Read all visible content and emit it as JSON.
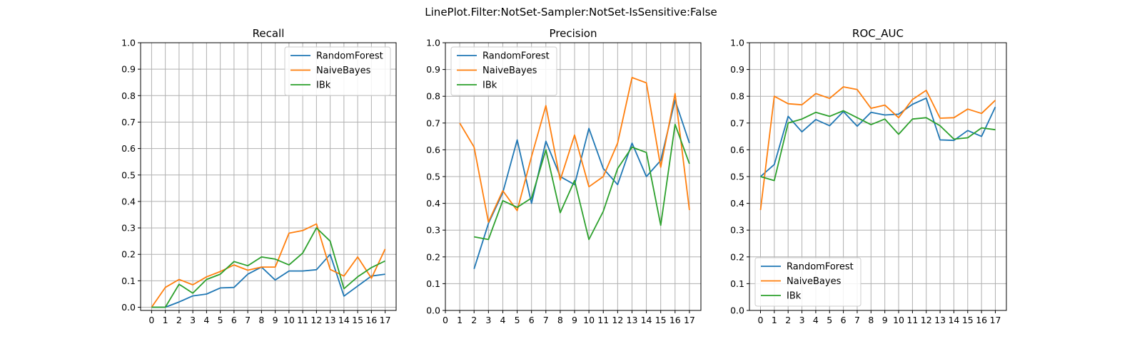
{
  "figure": {
    "title": "LinePlot.Filter:NotSet-Sampler:NotSet-IsSensitive:False"
  },
  "colors": {
    "RandomForest": "#1f77b4",
    "NaiveBayes": "#ff7f0e",
    "IBk": "#2ca02c"
  },
  "chart_data": [
    {
      "type": "line",
      "title": "Recall",
      "x": [
        0,
        1,
        2,
        3,
        4,
        5,
        6,
        7,
        8,
        9,
        10,
        11,
        12,
        13,
        14,
        15,
        16,
        17
      ],
      "xlim": [
        -0.8,
        17.8
      ],
      "ylim": [
        -0.012,
        1.0
      ],
      "yticks": [
        0.0,
        0.1,
        0.2,
        0.3,
        0.4,
        0.5,
        0.6,
        0.7,
        0.8,
        0.9,
        1.0
      ],
      "ytick_labels": [
        "0.0",
        "0.1",
        "0.2",
        "0.3",
        "0.4",
        "0.5",
        "0.6",
        "0.7",
        "0.8",
        "0.9",
        "1.0"
      ],
      "grid": true,
      "legend": "top-right",
      "series": [
        {
          "name": "RandomForest",
          "values": [
            0.0,
            0.0,
            0.02,
            0.043,
            0.05,
            0.073,
            0.075,
            0.125,
            0.152,
            0.103,
            0.137,
            0.137,
            0.142,
            0.2,
            0.042,
            0.08,
            0.118,
            0.125
          ]
        },
        {
          "name": "NaiveBayes",
          "values": [
            0.0,
            0.075,
            0.105,
            0.085,
            0.115,
            0.135,
            0.16,
            0.14,
            0.152,
            0.152,
            0.28,
            0.29,
            0.315,
            0.143,
            0.118,
            0.19,
            0.11,
            0.22
          ]
        },
        {
          "name": "IBk",
          "values": [
            0.0,
            0.0,
            0.087,
            0.053,
            0.105,
            0.125,
            0.173,
            0.157,
            0.19,
            0.182,
            0.16,
            0.205,
            0.3,
            0.25,
            0.07,
            0.115,
            0.15,
            0.175
          ]
        }
      ]
    },
    {
      "type": "line",
      "title": "Precision",
      "x": [
        0,
        1,
        2,
        3,
        4,
        5,
        6,
        7,
        8,
        9,
        10,
        11,
        12,
        13,
        14,
        15,
        16,
        17
      ],
      "xlim": [
        0,
        17.8
      ],
      "ylim": [
        0.0,
        1.0
      ],
      "yticks": [
        0.0,
        0.1,
        0.2,
        0.3,
        0.4,
        0.5,
        0.6,
        0.7,
        0.8,
        0.9,
        1.0
      ],
      "ytick_labels": [
        "0.0",
        "0.1",
        "0.2",
        "0.3",
        "0.4",
        "0.5",
        "0.6",
        "0.7",
        "0.8",
        "0.9",
        "1.0"
      ],
      "grid": true,
      "legend": "top-left",
      "series": [
        {
          "name": "RandomForest",
          "values": [
            null,
            null,
            0.155,
            0.325,
            0.44,
            0.637,
            0.4,
            0.632,
            0.5,
            0.47,
            0.68,
            0.53,
            0.47,
            0.625,
            0.5,
            0.56,
            0.785,
            0.625
          ]
        },
        {
          "name": "NaiveBayes",
          "values": [
            null,
            0.7,
            0.61,
            0.33,
            0.447,
            0.373,
            0.575,
            0.765,
            0.487,
            0.655,
            0.462,
            0.5,
            0.625,
            0.87,
            0.85,
            0.535,
            0.81,
            0.375
          ]
        },
        {
          "name": "IBk",
          "values": [
            null,
            null,
            0.275,
            0.265,
            0.41,
            0.385,
            0.42,
            0.6,
            0.365,
            0.485,
            0.265,
            0.37,
            0.53,
            0.61,
            0.59,
            0.318,
            0.695,
            0.548
          ]
        }
      ]
    },
    {
      "type": "line",
      "title": "ROC_AUC",
      "x": [
        0,
        1,
        2,
        3,
        4,
        5,
        6,
        7,
        8,
        9,
        10,
        11,
        12,
        13,
        14,
        15,
        16,
        17
      ],
      "xlim": [
        -0.8,
        17.8
      ],
      "ylim": [
        0.0,
        1.0
      ],
      "yticks": [
        0.0,
        0.1,
        0.2,
        0.3,
        0.4,
        0.5,
        0.6,
        0.7,
        0.8,
        0.9,
        1.0
      ],
      "ytick_labels": [
        "0.0",
        "0.1",
        "0.2",
        "0.3",
        "0.4",
        "0.5",
        "0.6",
        "0.7",
        "0.8",
        "0.9",
        "1.0"
      ],
      "grid": true,
      "legend": "bottom-left",
      "series": [
        {
          "name": "RandomForest",
          "values": [
            0.5,
            0.545,
            0.725,
            0.667,
            0.713,
            0.69,
            0.743,
            0.688,
            0.74,
            0.73,
            0.733,
            0.77,
            0.793,
            0.637,
            0.635,
            0.672,
            0.65,
            0.76
          ]
        },
        {
          "name": "NaiveBayes",
          "values": [
            0.375,
            0.8,
            0.772,
            0.768,
            0.81,
            0.792,
            0.835,
            0.825,
            0.755,
            0.767,
            0.72,
            0.788,
            0.822,
            0.718,
            0.72,
            0.752,
            0.736,
            0.785
          ]
        },
        {
          "name": "IBk",
          "values": [
            0.5,
            0.485,
            0.7,
            0.715,
            0.74,
            0.725,
            0.746,
            0.72,
            0.694,
            0.715,
            0.658,
            0.715,
            0.72,
            0.69,
            0.64,
            0.645,
            0.682,
            0.675
          ]
        }
      ]
    }
  ]
}
